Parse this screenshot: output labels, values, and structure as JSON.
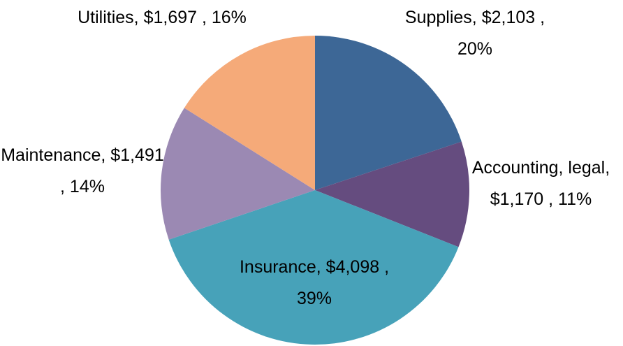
{
  "chart_data": {
    "type": "pie",
    "categories": [
      "Supplies,",
      "Accounting, legal,",
      "Insurance,",
      "Maintenance,",
      "Utilities,"
    ],
    "values": [
      2103,
      1170,
      4098,
      1491,
      1697
    ],
    "value_labels": [
      "$2,103 , 20%",
      "$1,170 , 11%",
      "$4,098 , 39%",
      "$1,491 , 14%",
      "$1,697 , 16%"
    ],
    "colors": [
      "#3d6796",
      "#654c7f",
      "#47a2b9",
      "#9b89b3",
      "#f5aa79"
    ]
  }
}
